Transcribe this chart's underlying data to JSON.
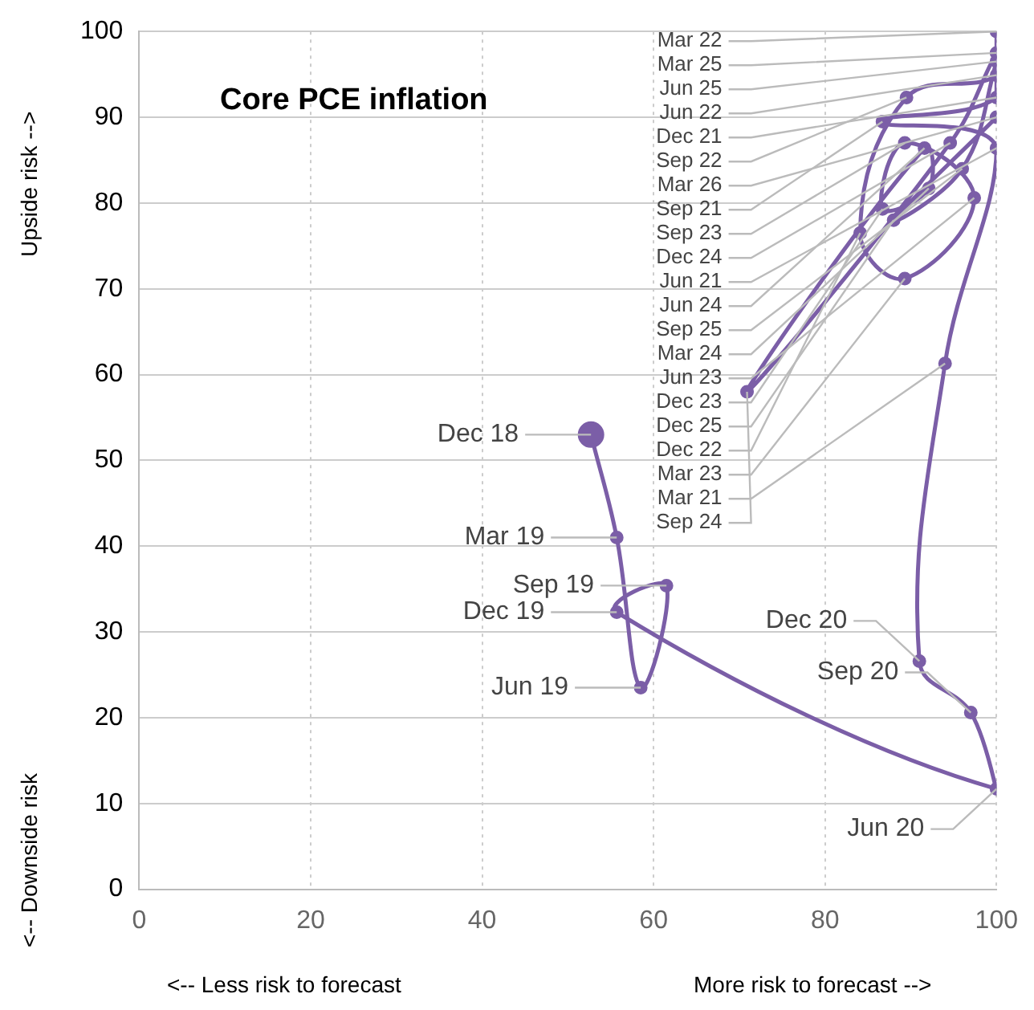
{
  "chart_data": {
    "type": "line",
    "title": "Core PCE inflation",
    "x": [
      52.7,
      55.7,
      58.5,
      61.5,
      55.7,
      100,
      97,
      91,
      94,
      100,
      86.7,
      100,
      100,
      100,
      89.5,
      84.1,
      89.3,
      97.4,
      89.3,
      86.7,
      92.1,
      91.6,
      70.9,
      94.6,
      100,
      100,
      96,
      88,
      100
    ],
    "series": [
      {
        "color": "#7b5ea7",
        "values": [
          53,
          41,
          23.5,
          35.4,
          32.3,
          11.7,
          20.6,
          26.6,
          61.3,
          86.4,
          89.5,
          92.3,
          100,
          94.9,
          92.3,
          76.5,
          71.2,
          80.6,
          87,
          79.3,
          81.7,
          86.4,
          58,
          87,
          97.5,
          96.5,
          84,
          78,
          90
        ],
        "value_labels": [
          "Dec 18",
          "Mar 19",
          "Jun 19",
          "Sep 19",
          "Dec 19",
          "Jun 20",
          "Sep 20",
          "Dec 20",
          "Mar 21",
          "Jun 21",
          "Sep 21",
          "Dec 21",
          "Mar 22",
          "Jun 22",
          "Sep 22",
          "Dec 22",
          "Mar 23",
          "Jun 23",
          "Sep 23",
          "Dec 23",
          "Mar 24",
          "Jun 24",
          "Sep 24",
          "Dec 24",
          "Mar 25",
          "Jun 25",
          "Sep 25",
          "Dec 25",
          "Mar 26"
        ]
      }
    ],
    "xlim": [
      0,
      100
    ],
    "xticks": [
      0,
      20,
      40,
      60,
      80,
      100
    ],
    "ylim": [
      0,
      100
    ],
    "yticks": [
      0,
      10,
      20,
      30,
      40,
      50,
      60,
      70,
      80,
      90,
      100
    ],
    "grid": true,
    "marker": "circle",
    "line_style": "solid",
    "annotations": [
      "<-- Less risk to forecast",
      "More risk to forecast -->",
      "Upside risk -->",
      "<-- Downside risk"
    ]
  }
}
